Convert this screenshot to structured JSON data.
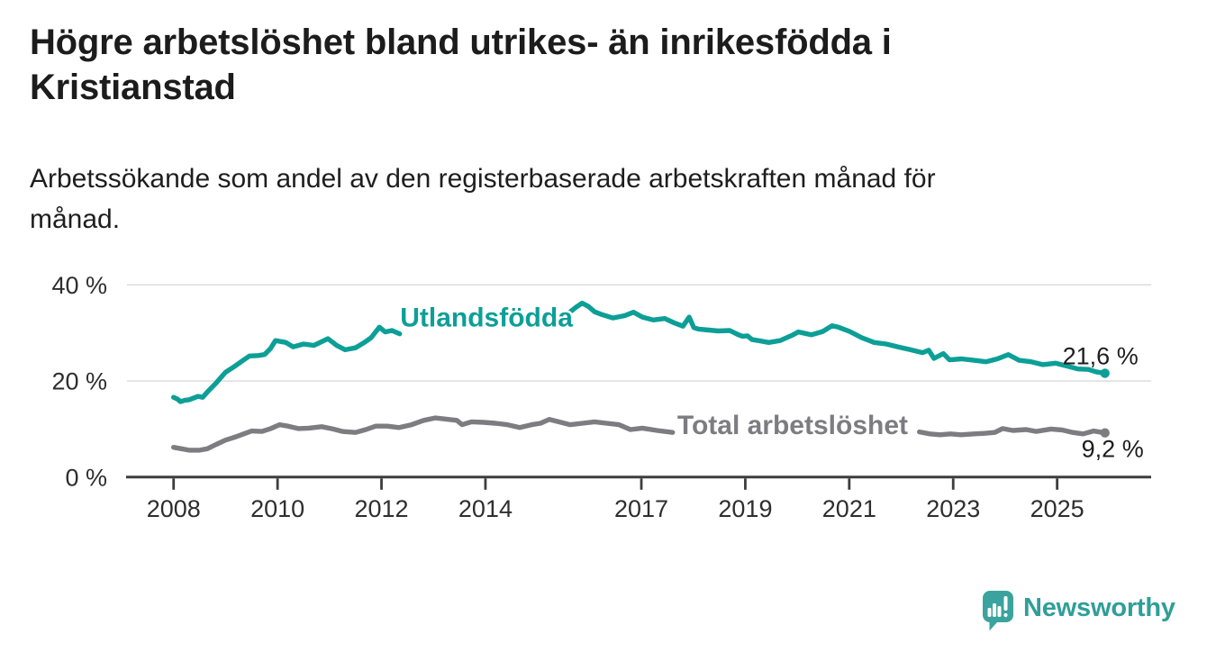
{
  "header": {
    "title": "Högre arbetslöshet bland utrikes- än inrikesfödda i\nKristianstad",
    "subtitle": "Arbetssökande som andel av den registerbaserade arbetskraften månad för\nmånad."
  },
  "footer": {
    "brand": "Newsworthy"
  },
  "colors": {
    "axis": "#3d3d3d",
    "grid": "#d9d9d9",
    "tick_label": "#2e2e2e",
    "value_label": "#1d1d1d",
    "logo_icon": "#3ba39e",
    "logo_text": "#2f9e99"
  },
  "chart_data": {
    "type": "line",
    "title": "Högre arbetslöshet bland utrikes- än inrikesfödda i Kristianstad",
    "subtitle": "Arbetssökande som andel av den registerbaserade arbetskraften månad för månad.",
    "unit": "%",
    "grid": true,
    "legend_position": "inline-labels",
    "x_axis": {
      "range": [
        2007.1,
        2026.8
      ],
      "ticks": [
        2008,
        2010,
        2012,
        2014,
        2017,
        2019,
        2021,
        2023,
        2025
      ]
    },
    "y_axis": {
      "range": [
        0,
        42
      ],
      "ticks": [
        0,
        20,
        40
      ],
      "tick_labels": [
        "0 %",
        "20 %",
        "40 %"
      ]
    },
    "series": [
      {
        "name": "Utlandsfödda",
        "color": "#0d9f97",
        "inline_label": {
          "text": "Utlandsfödda",
          "year": 2014.02,
          "value": 31.3
        },
        "end_dot": {
          "year": 2025.92,
          "value": 21.6
        },
        "end_label": "21,6 %",
        "end_label_offset": {
          "dx": 37,
          "dy": -10
        },
        "segments": [
          [
            [
              2008.0,
              16.6
            ],
            [
              2008.08,
              16.2
            ],
            [
              2008.13,
              15.7
            ],
            [
              2008.22,
              16.0
            ],
            [
              2008.3,
              16.1
            ],
            [
              2008.4,
              16.5
            ],
            [
              2008.47,
              16.8
            ],
            [
              2008.56,
              16.6
            ],
            [
              2008.65,
              17.7
            ],
            [
              2008.82,
              19.6
            ],
            [
              2009.0,
              21.8
            ],
            [
              2009.17,
              23.0
            ],
            [
              2009.34,
              24.3
            ],
            [
              2009.46,
              25.2
            ],
            [
              2009.63,
              25.3
            ],
            [
              2009.75,
              25.5
            ],
            [
              2009.86,
              26.7
            ],
            [
              2009.96,
              28.4
            ],
            [
              2010.16,
              28.0
            ],
            [
              2010.3,
              27.1
            ],
            [
              2010.5,
              27.7
            ],
            [
              2010.7,
              27.4
            ],
            [
              2010.97,
              28.8
            ],
            [
              2011.14,
              27.4
            ],
            [
              2011.3,
              26.5
            ],
            [
              2011.5,
              26.9
            ],
            [
              2011.67,
              28.0
            ],
            [
              2011.8,
              29.0
            ],
            [
              2011.96,
              31.2
            ],
            [
              2012.07,
              30.2
            ],
            [
              2012.2,
              30.5
            ],
            [
              2012.35,
              29.8
            ]
          ],
          [
            [
              2015.62,
              34.3
            ],
            [
              2015.75,
              35.4
            ],
            [
              2015.86,
              36.2
            ],
            [
              2015.98,
              35.5
            ],
            [
              2016.1,
              34.4
            ],
            [
              2016.22,
              33.9
            ],
            [
              2016.45,
              33.1
            ],
            [
              2016.68,
              33.6
            ],
            [
              2016.85,
              34.3
            ],
            [
              2017.02,
              33.3
            ],
            [
              2017.23,
              32.7
            ],
            [
              2017.45,
              33.0
            ],
            [
              2017.63,
              32.1
            ],
            [
              2017.8,
              31.4
            ],
            [
              2017.92,
              33.3
            ],
            [
              2018.01,
              31.1
            ],
            [
              2018.1,
              30.8
            ],
            [
              2018.3,
              30.6
            ],
            [
              2018.48,
              30.4
            ],
            [
              2018.7,
              30.5
            ],
            [
              2018.87,
              29.6
            ],
            [
              2018.95,
              29.3
            ],
            [
              2019.04,
              29.4
            ],
            [
              2019.13,
              28.6
            ],
            [
              2019.3,
              28.3
            ],
            [
              2019.45,
              28.0
            ],
            [
              2019.67,
              28.4
            ],
            [
              2019.92,
              29.6
            ],
            [
              2020.02,
              30.2
            ],
            [
              2020.27,
              29.6
            ],
            [
              2020.49,
              30.3
            ],
            [
              2020.67,
              31.5
            ],
            [
              2020.79,
              31.2
            ],
            [
              2021.01,
              30.3
            ],
            [
              2021.24,
              29.0
            ],
            [
              2021.48,
              28.0
            ],
            [
              2021.71,
              27.7
            ],
            [
              2021.94,
              27.1
            ],
            [
              2022.18,
              26.5
            ],
            [
              2022.41,
              25.9
            ],
            [
              2022.53,
              26.4
            ],
            [
              2022.63,
              24.7
            ],
            [
              2022.81,
              25.7
            ],
            [
              2022.93,
              24.4
            ],
            [
              2023.16,
              24.6
            ],
            [
              2023.4,
              24.3
            ],
            [
              2023.63,
              24.0
            ],
            [
              2023.85,
              24.6
            ],
            [
              2024.06,
              25.5
            ],
            [
              2024.27,
              24.3
            ],
            [
              2024.5,
              24.0
            ],
            [
              2024.72,
              23.4
            ],
            [
              2024.97,
              23.7
            ],
            [
              2025.19,
              23.1
            ],
            [
              2025.4,
              22.5
            ],
            [
              2025.6,
              22.4
            ],
            [
              2025.75,
              21.9
            ],
            [
              2025.92,
              21.6
            ]
          ]
        ]
      },
      {
        "name": "Total arbetslöshet",
        "color": "#7d7d81",
        "inline_label": {
          "text": "Total arbetslöshet",
          "year": 2019.91,
          "value": 9.0
        },
        "end_dot": {
          "year": 2025.92,
          "value": 9.2
        },
        "end_label": "9,2 %",
        "end_label_offset": {
          "dx": 43,
          "dy": 27
        },
        "segments": [
          [
            [
              2008.0,
              6.2
            ],
            [
              2008.15,
              5.9
            ],
            [
              2008.3,
              5.6
            ],
            [
              2008.5,
              5.6
            ],
            [
              2008.65,
              5.9
            ],
            [
              2008.82,
              6.8
            ],
            [
              2009.0,
              7.7
            ],
            [
              2009.2,
              8.4
            ],
            [
              2009.35,
              9.0
            ],
            [
              2009.5,
              9.6
            ],
            [
              2009.7,
              9.5
            ],
            [
              2009.87,
              10.1
            ],
            [
              2010.04,
              10.9
            ],
            [
              2010.2,
              10.6
            ],
            [
              2010.4,
              10.1
            ],
            [
              2010.6,
              10.2
            ],
            [
              2010.85,
              10.5
            ],
            [
              2011.07,
              10.0
            ],
            [
              2011.25,
              9.5
            ],
            [
              2011.5,
              9.3
            ],
            [
              2011.7,
              9.9
            ],
            [
              2011.89,
              10.6
            ],
            [
              2012.11,
              10.6
            ],
            [
              2012.34,
              10.3
            ],
            [
              2012.58,
              10.9
            ],
            [
              2012.81,
              11.8
            ],
            [
              2013.03,
              12.3
            ],
            [
              2013.21,
              12.1
            ],
            [
              2013.45,
              11.8
            ],
            [
              2013.55,
              10.9
            ],
            [
              2013.73,
              11.5
            ],
            [
              2013.97,
              11.4
            ],
            [
              2014.19,
              11.2
            ],
            [
              2014.42,
              10.9
            ],
            [
              2014.66,
              10.3
            ],
            [
              2014.89,
              10.9
            ],
            [
              2015.06,
              11.2
            ],
            [
              2015.23,
              12.0
            ],
            [
              2015.41,
              11.5
            ],
            [
              2015.63,
              10.9
            ],
            [
              2015.87,
              11.2
            ],
            [
              2016.1,
              11.5
            ],
            [
              2016.33,
              11.2
            ],
            [
              2016.57,
              10.9
            ],
            [
              2016.79,
              9.9
            ],
            [
              2017.02,
              10.2
            ],
            [
              2017.3,
              9.7
            ],
            [
              2017.6,
              9.3
            ]
          ],
          [
            [
              2022.35,
              9.4
            ],
            [
              2022.55,
              9.0
            ],
            [
              2022.75,
              8.8
            ],
            [
              2022.95,
              9.0
            ],
            [
              2023.15,
              8.8
            ],
            [
              2023.4,
              9.0
            ],
            [
              2023.6,
              9.1
            ],
            [
              2023.8,
              9.3
            ],
            [
              2023.95,
              10.1
            ],
            [
              2024.15,
              9.7
            ],
            [
              2024.4,
              9.9
            ],
            [
              2024.6,
              9.5
            ],
            [
              2024.88,
              10.0
            ],
            [
              2025.1,
              9.8
            ],
            [
              2025.3,
              9.3
            ],
            [
              2025.5,
              9.0
            ],
            [
              2025.7,
              9.6
            ],
            [
              2025.92,
              9.2
            ]
          ]
        ]
      }
    ]
  }
}
